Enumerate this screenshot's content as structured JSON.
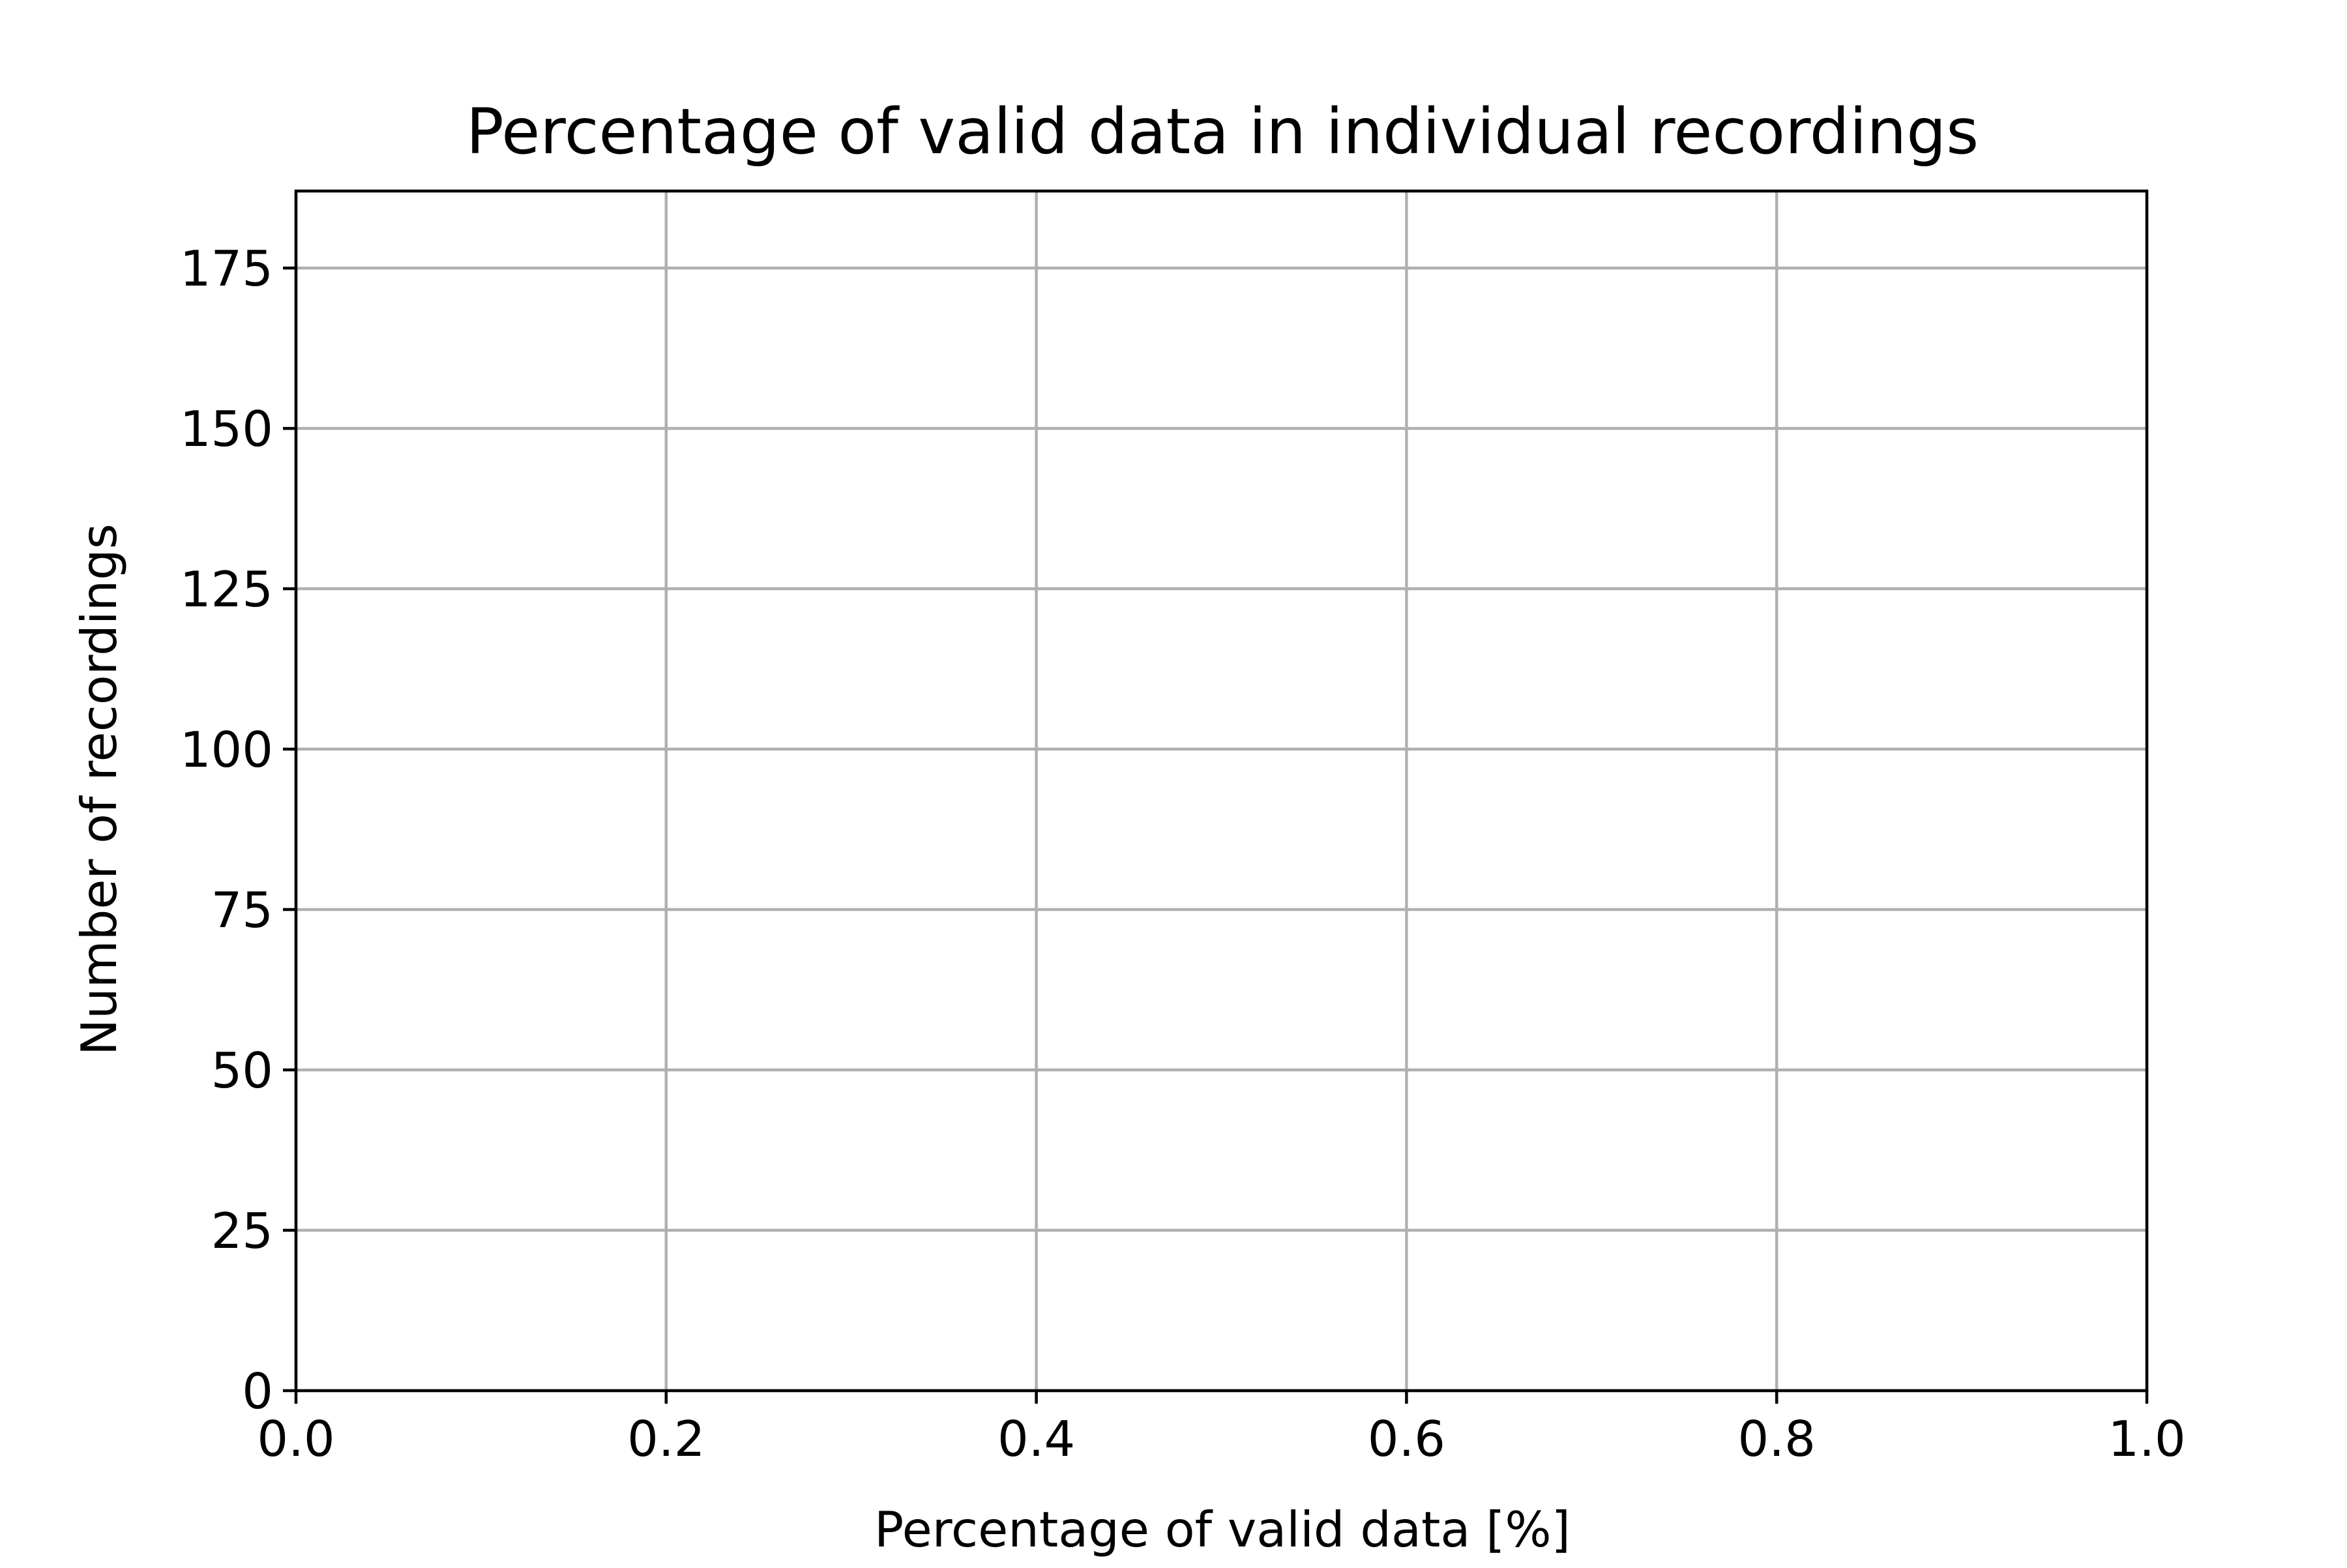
{
  "chart_data": {
    "type": "bar",
    "title": "Percentage of valid data in individual recordings",
    "xlabel": "Percentage of valid data [%]",
    "ylabel": "Number of recordings",
    "xlim": [
      0.0,
      1.0
    ],
    "ylim": [
      0,
      187
    ],
    "xticks": [
      0.0,
      0.2,
      0.4,
      0.6,
      0.8,
      1.0
    ],
    "xtick_labels": [
      "0.0",
      "0.2",
      "0.4",
      "0.6",
      "0.8",
      "1.0"
    ],
    "yticks": [
      0,
      25,
      50,
      75,
      100,
      125,
      150,
      175
    ],
    "ytick_labels": [
      "0",
      "25",
      "50",
      "75",
      "100",
      "125",
      "150",
      "175"
    ],
    "grid": true,
    "series": [],
    "colors": {
      "grid": "#b0b0b0",
      "axes": "#000000",
      "background": "#ffffff"
    }
  }
}
